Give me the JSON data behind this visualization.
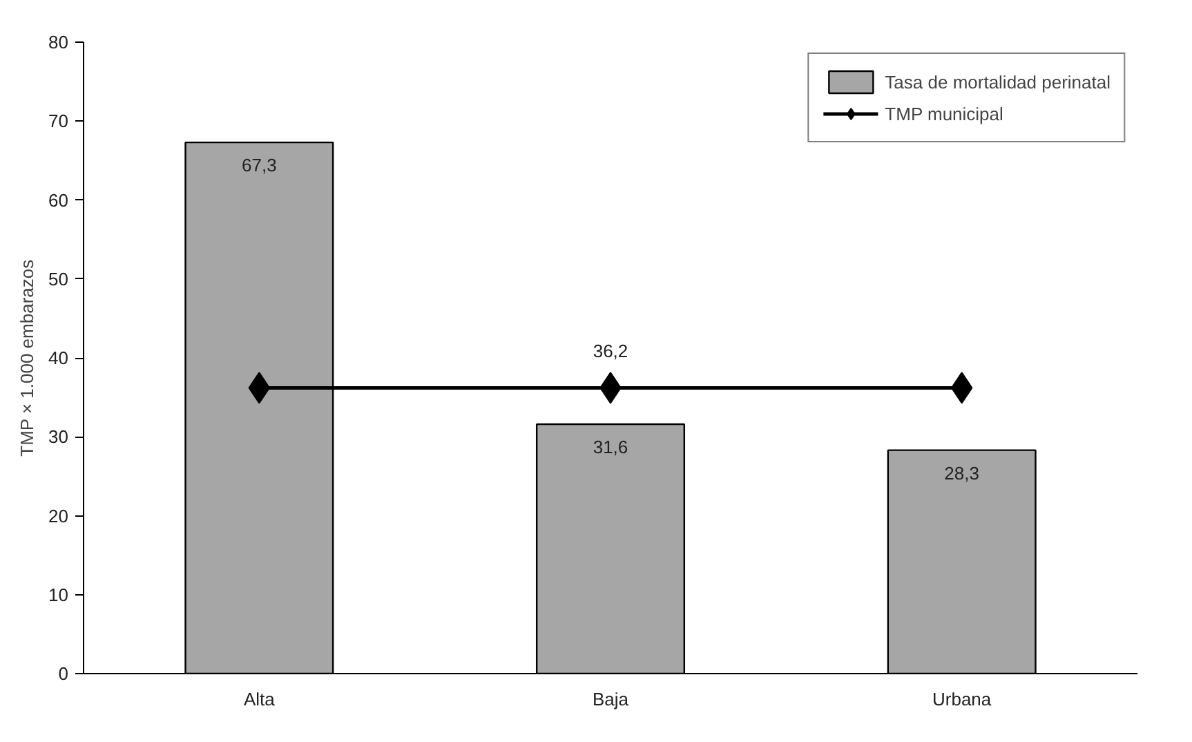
{
  "chart_data": {
    "type": "bar",
    "ylabel": "TMP × 1.000 embarazos",
    "categories": [
      "Alta",
      "Baja",
      "Urbana"
    ],
    "series": [
      {
        "name": "Tasa de mortalidad perinatal",
        "color": "#a6a6a6",
        "values": [
          67.3,
          31.6,
          28.3
        ],
        "value_labels": [
          "67,3",
          "31,6",
          "28,3"
        ]
      },
      {
        "name": "TMP municipal",
        "type": "line",
        "color": "#000000",
        "marker": "diamond",
        "values": [
          36.2,
          36.2,
          36.2
        ],
        "value_labels": [
          null,
          "36,2",
          null
        ]
      }
    ],
    "ylim": [
      0,
      80
    ],
    "yticks": [
      0,
      10,
      20,
      30,
      40,
      50,
      60,
      70,
      80
    ],
    "grid": false,
    "legend": "top right"
  }
}
